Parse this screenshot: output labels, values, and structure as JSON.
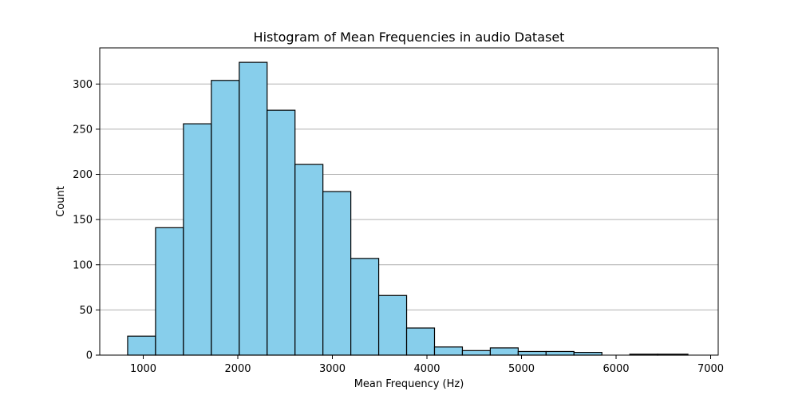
{
  "chart_data": {
    "type": "bar",
    "title": "Histogram of Mean Frequencies in audio Dataset",
    "xlabel": "Mean Frequency (Hz)",
    "ylabel": "Count",
    "xlim": [
      540,
      7080
    ],
    "ylim": [
      0,
      340
    ],
    "xticks": [
      1000,
      2000,
      3000,
      4000,
      5000,
      6000,
      7000
    ],
    "yticks": [
      0,
      50,
      100,
      150,
      200,
      250,
      300
    ],
    "grid": {
      "y": true,
      "x": false
    },
    "bar_color": "#87CEEB",
    "edge_color": "#000000",
    "bin_edges": [
      835,
      1130,
      1425,
      1720,
      2015,
      2310,
      2605,
      2900,
      3195,
      3490,
      3785,
      4080,
      4375,
      4670,
      4965,
      5260,
      5555,
      5850,
      6145,
      6440,
      6760
    ],
    "counts": [
      21,
      141,
      256,
      304,
      324,
      271,
      211,
      181,
      107,
      66,
      30,
      9,
      5,
      8,
      4,
      4,
      3,
      0,
      1,
      1
    ]
  }
}
